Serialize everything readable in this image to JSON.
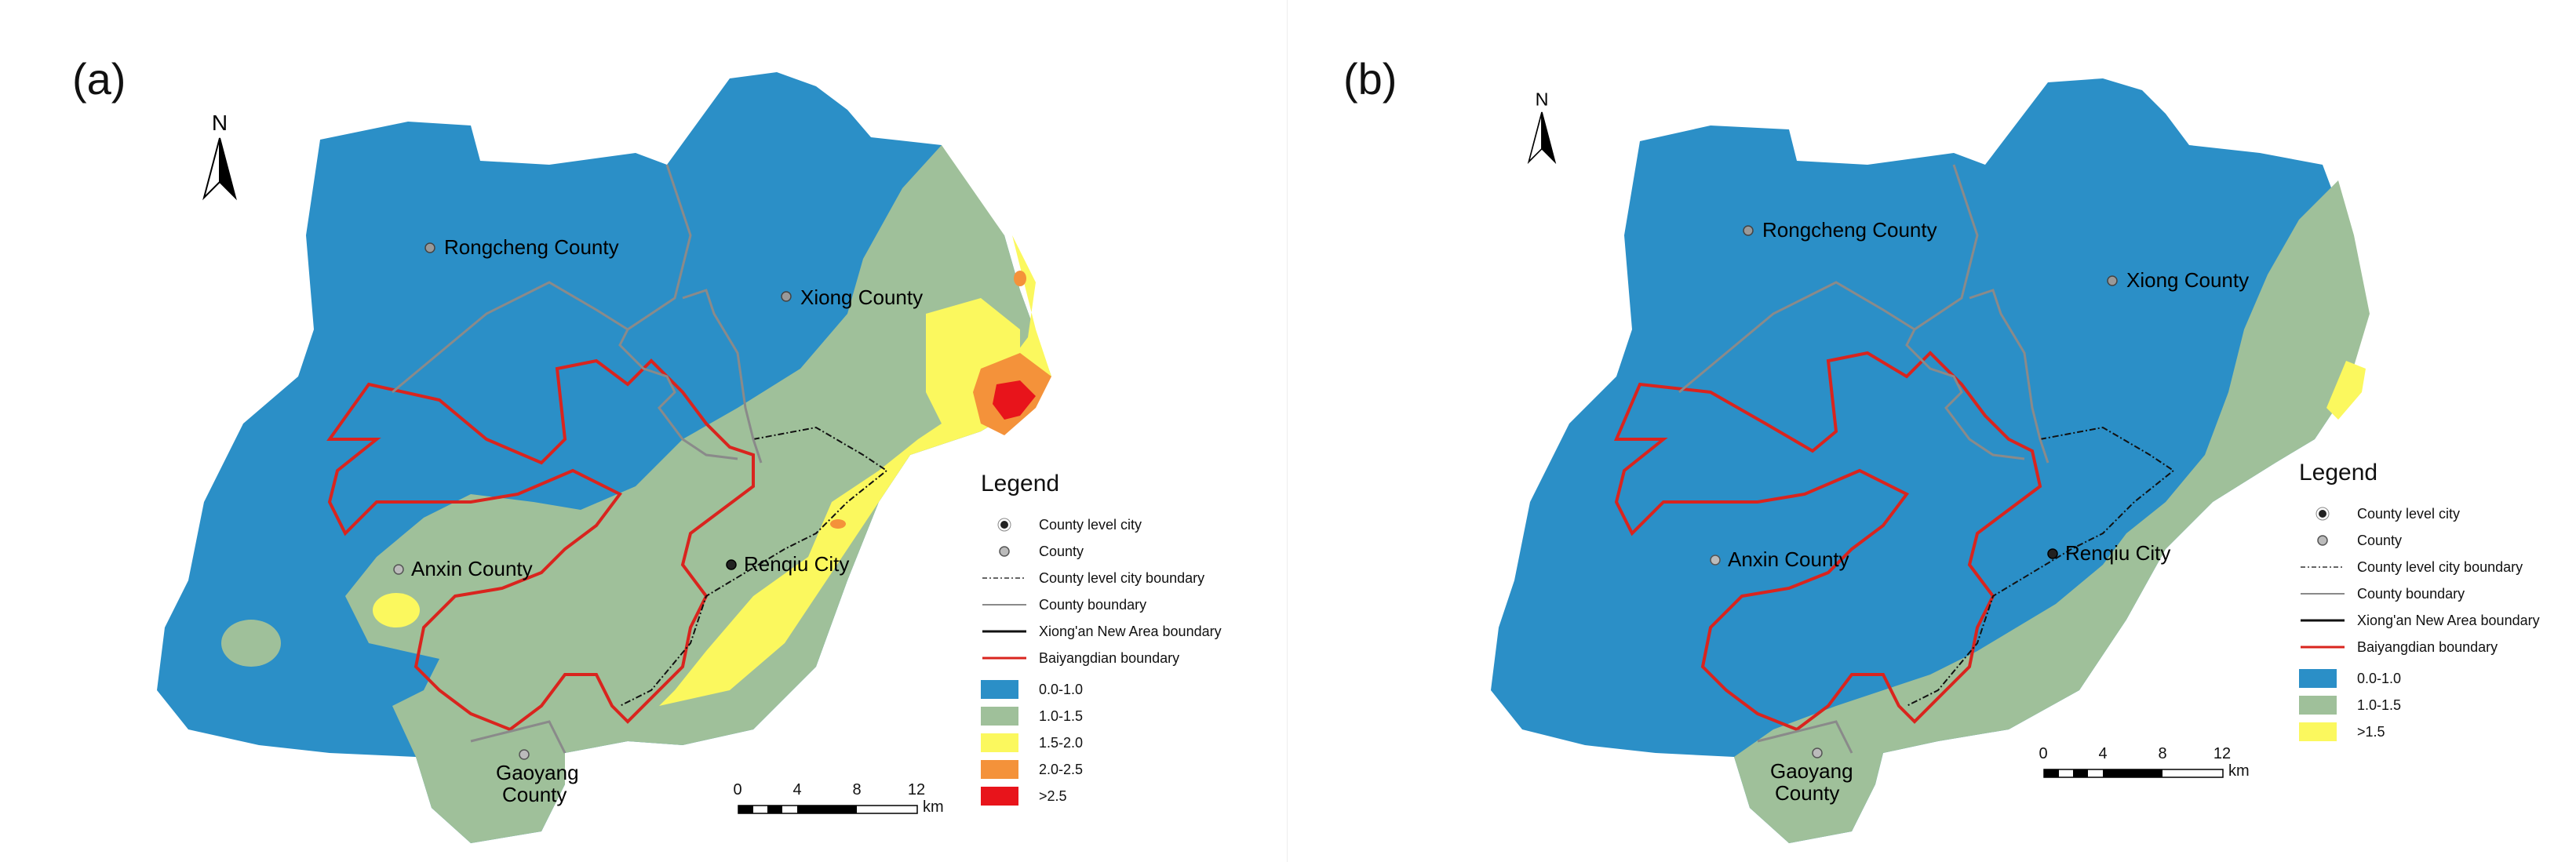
{
  "panels": [
    {
      "label": "(a)",
      "north": "N",
      "places": {
        "rongcheng": "Rongcheng County",
        "xiong": "Xiong County",
        "anxin": "Anxin County",
        "renqiu": "Renqiu City",
        "gaoyang_1": "Gaoyang",
        "gaoyang_2": "County"
      },
      "legend": {
        "title": "Legend",
        "symbols": [
          {
            "label": "County level city",
            "icon": "city-dot"
          },
          {
            "label": "County",
            "icon": "county-dot"
          },
          {
            "label": "County level city boundary",
            "icon": "dashdot-line"
          },
          {
            "label": "County boundary",
            "icon": "gray-line"
          },
          {
            "label": "Xiong'an New Area boundary",
            "icon": "black-line"
          },
          {
            "label": "Baiyangdian boundary",
            "icon": "red-line"
          }
        ],
        "classes": [
          {
            "label": "0.0-1.0",
            "color": "#2b8fc7"
          },
          {
            "label": "1.0-1.5",
            "color": "#9fc09a"
          },
          {
            "label": "1.5-2.0",
            "color": "#fbf85e"
          },
          {
            "label": "2.0-2.5",
            "color": "#f4923a"
          },
          {
            "label": ">2.5",
            "color": "#e8141b"
          }
        ]
      },
      "scale": {
        "ticks": [
          "0",
          "4",
          "8",
          "12"
        ],
        "unit": "km"
      }
    },
    {
      "label": "(b)",
      "north": "N",
      "places": {
        "rongcheng": "Rongcheng County",
        "xiong": "Xiong County",
        "anxin": "Anxin County",
        "renqiu": "Renqiu City",
        "gaoyang_1": "Gaoyang",
        "gaoyang_2": "County"
      },
      "legend": {
        "title": "Legend",
        "symbols": [
          {
            "label": "County level city",
            "icon": "city-dot"
          },
          {
            "label": "County",
            "icon": "county-dot"
          },
          {
            "label": "County level city boundary",
            "icon": "dashdot-line"
          },
          {
            "label": "County boundary",
            "icon": "gray-line"
          },
          {
            "label": "Xiong'an New Area boundary",
            "icon": "black-line"
          },
          {
            "label": "Baiyangdian boundary",
            "icon": "red-line"
          }
        ],
        "classes": [
          {
            "label": "0.0-1.0",
            "color": "#2b8fc7"
          },
          {
            "label": "1.0-1.5",
            "color": "#9fc09a"
          },
          {
            "label": ">1.5",
            "color": "#fbf85e"
          }
        ]
      },
      "scale": {
        "ticks": [
          "0",
          "4",
          "8",
          "12"
        ],
        "unit": "km"
      }
    }
  ]
}
